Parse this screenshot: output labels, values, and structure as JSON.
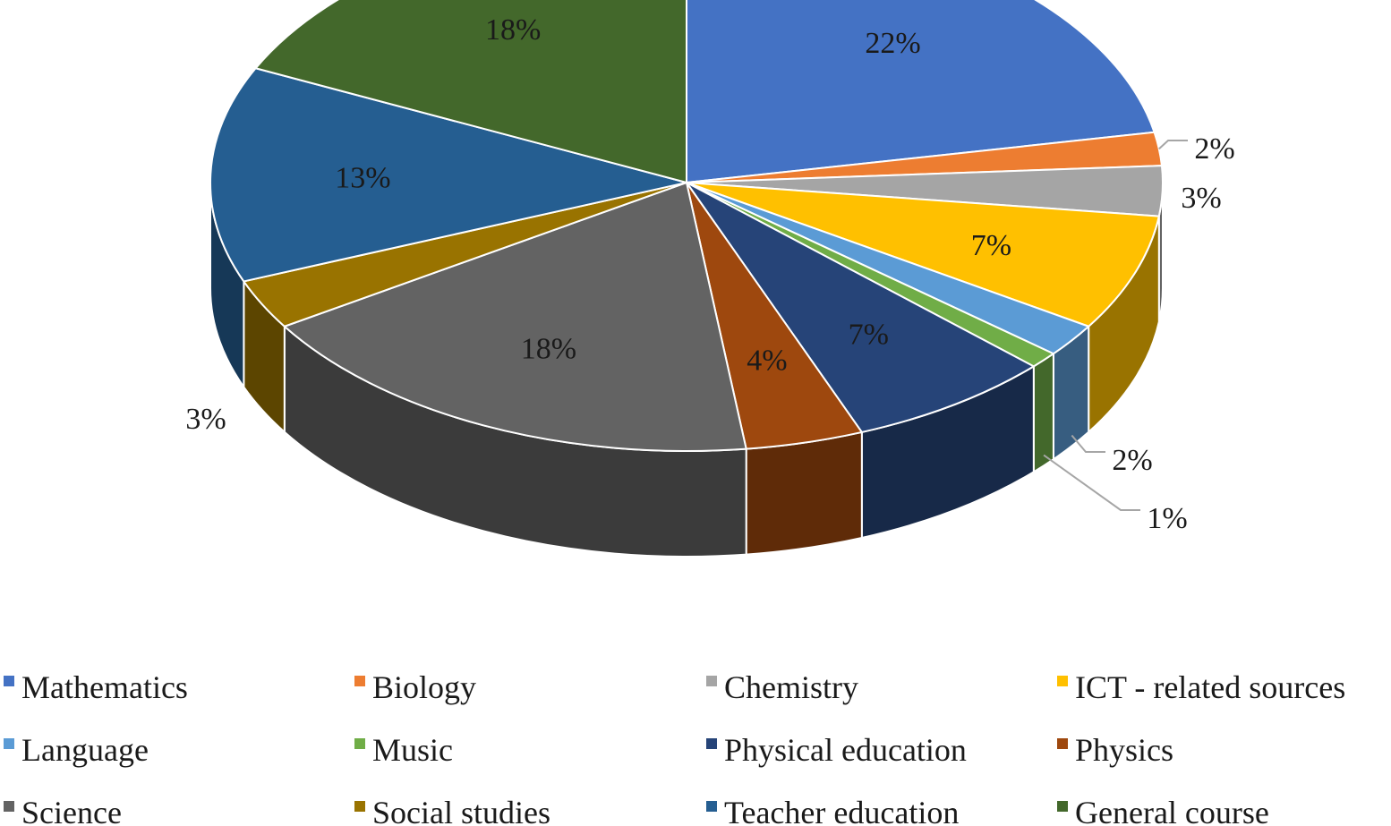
{
  "chart_data": {
    "type": "pie",
    "style": "3d",
    "slices": [
      {
        "name": "Mathematics",
        "value": 22,
        "label": "22%",
        "color": "#4472C4"
      },
      {
        "name": "Biology",
        "value": 2,
        "label": "2%",
        "color": "#ED7D31"
      },
      {
        "name": "Chemistry",
        "value": 3,
        "label": "3%",
        "color": "#A5A5A5"
      },
      {
        "name": "ICT - related sources",
        "value": 7,
        "label": "7%",
        "color": "#FFC000"
      },
      {
        "name": "Language",
        "value": 2,
        "label": "2%",
        "color": "#5B9BD5"
      },
      {
        "name": "Music",
        "value": 1,
        "label": "1%",
        "color": "#70AD47"
      },
      {
        "name": "Physical education",
        "value": 7,
        "label": "7%",
        "color": "#264478"
      },
      {
        "name": "Physics",
        "value": 4,
        "label": "4%",
        "color": "#9E480E"
      },
      {
        "name": "Science",
        "value": 18,
        "label": "18%",
        "color": "#636363"
      },
      {
        "name": "Social studies",
        "value": 3,
        "label": "3%",
        "color": "#997300"
      },
      {
        "name": "Teacher education",
        "value": 13,
        "label": "13%",
        "color": "#255E91"
      },
      {
        "name": "General course",
        "value": 18,
        "label": "18%",
        "color": "#43682B"
      }
    ],
    "legend_position": "bottom",
    "title": ""
  }
}
